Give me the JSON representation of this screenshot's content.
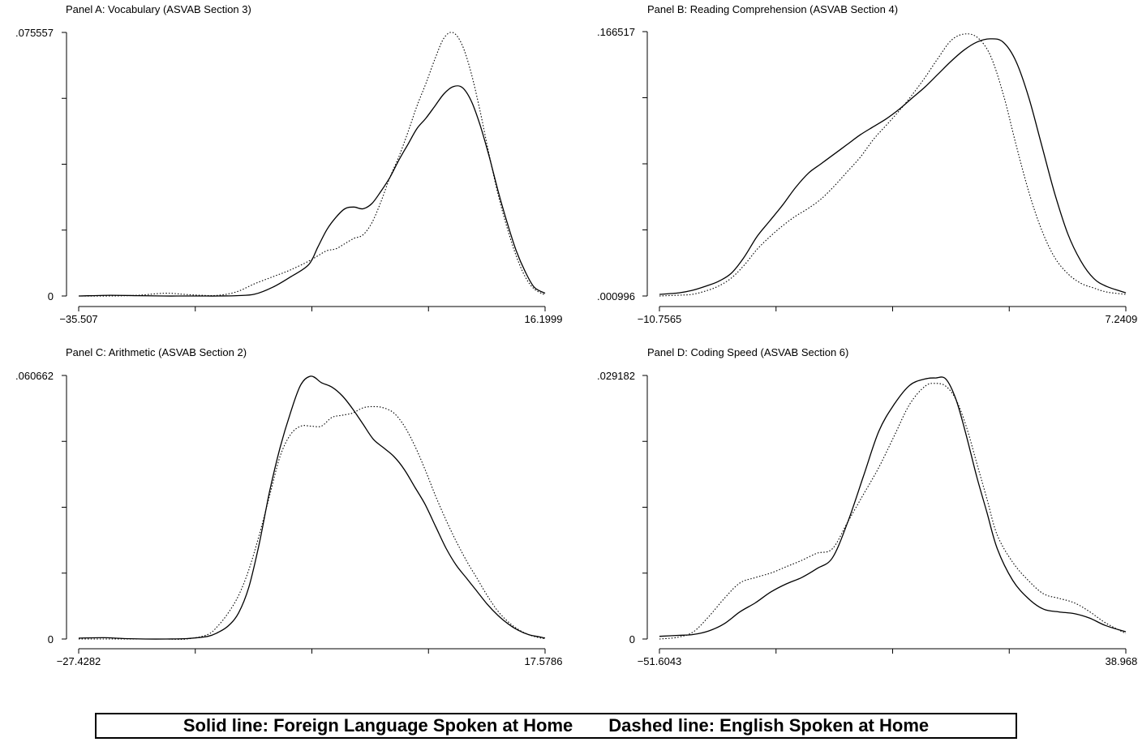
{
  "chart_data": [
    {
      "type": "line",
      "title": "Panel A: Vocabulary (ASVAB Section 3)",
      "xlim": [
        -35.507,
        16.1999
      ],
      "ylim": [
        0,
        0.075557
      ],
      "x_tick_labels": [
        "−35.507",
        "16.1999"
      ],
      "y_tick_labels": [
        "0",
        ".075557"
      ],
      "series": [
        {
          "style": "solid",
          "x": [
            -35.507,
            -32,
            -29,
            -26,
            -24,
            -22,
            -20,
            -18,
            -16,
            -14,
            -12,
            -10,
            -9,
            -8,
            -7,
            -6,
            -5,
            -4,
            -3,
            -2,
            -1,
            0,
            1,
            2,
            3,
            4,
            5,
            6,
            7,
            8,
            9,
            10,
            11,
            12,
            13,
            14,
            15,
            16.1999
          ],
          "y": [
            0,
            0.0002,
            0.0001,
            0,
            0,
            0,
            0,
            0.0001,
            0.0005,
            0.0025,
            0.0055,
            0.009,
            0.014,
            0.019,
            0.0225,
            0.025,
            0.0255,
            0.025,
            0.0265,
            0.03,
            0.034,
            0.039,
            0.0435,
            0.048,
            0.051,
            0.0545,
            0.058,
            0.06,
            0.0598,
            0.056,
            0.049,
            0.04,
            0.03,
            0.021,
            0.013,
            0.007,
            0.0025,
            0.0008
          ]
        },
        {
          "style": "dotted",
          "x": [
            -35.507,
            -32,
            -29,
            -26,
            -24,
            -22,
            -20,
            -18,
            -16,
            -14,
            -12,
            -10,
            -9,
            -8,
            -7,
            -6,
            -5,
            -4,
            -3,
            -2,
            -1,
            0,
            1,
            2,
            3,
            4,
            5,
            6,
            7,
            8,
            9,
            10,
            11,
            12,
            13,
            14,
            15,
            16.1999
          ],
          "y": [
            0,
            0,
            0.0002,
            0.0008,
            0.0005,
            0.0002,
            0.0002,
            0.0012,
            0.0035,
            0.0055,
            0.0075,
            0.01,
            0.0115,
            0.013,
            0.0135,
            0.015,
            0.0165,
            0.0175,
            0.021,
            0.027,
            0.034,
            0.04,
            0.047,
            0.0545,
            0.061,
            0.068,
            0.074,
            0.0755,
            0.072,
            0.064,
            0.053,
            0.0405,
            0.029,
            0.0195,
            0.0115,
            0.0055,
            0.002,
            0.0003
          ]
        }
      ]
    },
    {
      "type": "line",
      "title": "Panel B: Reading Comprehension (ASVAB Section 4)",
      "xlim": [
        -10.7565,
        7.24099
      ],
      "ylim": [
        0.000996,
        0.166517
      ],
      "x_tick_labels": [
        "−10.7565",
        "7.24099"
      ],
      "y_tick_labels": [
        ".000996",
        ".166517"
      ],
      "series": [
        {
          "style": "solid",
          "x": [
            -10.7565,
            -10,
            -9.5,
            -9,
            -8.5,
            -8,
            -7.5,
            -7,
            -6.5,
            -6,
            -5.5,
            -5,
            -4.5,
            -4,
            -3.5,
            -3,
            -2.5,
            -2,
            -1.5,
            -1,
            -0.5,
            0,
            0.5,
            1,
            1.5,
            2,
            2.5,
            3,
            3.5,
            4,
            4.5,
            5,
            5.5,
            6,
            6.5,
            7.24099
          ],
          "y": [
            0.002,
            0.003,
            0.0045,
            0.007,
            0.01,
            0.015,
            0.025,
            0.038,
            0.048,
            0.058,
            0.069,
            0.078,
            0.084,
            0.09,
            0.096,
            0.102,
            0.107,
            0.112,
            0.118,
            0.125,
            0.132,
            0.14,
            0.148,
            0.155,
            0.16,
            0.162,
            0.16,
            0.148,
            0.125,
            0.095,
            0.065,
            0.04,
            0.023,
            0.012,
            0.007,
            0.003
          ]
        },
        {
          "style": "dotted",
          "x": [
            -10.7565,
            -10,
            -9.5,
            -9,
            -8.5,
            -8,
            -7.5,
            -7,
            -6.5,
            -6,
            -5.5,
            -5,
            -4.5,
            -4,
            -3.5,
            -3,
            -2.5,
            -2,
            -1.5,
            -1,
            -0.5,
            0,
            0.5,
            1,
            1.5,
            2,
            2.5,
            3,
            3.5,
            4,
            4.5,
            5,
            5.5,
            6,
            6.5,
            7.24099
          ],
          "y": [
            0.001,
            0.0015,
            0.002,
            0.004,
            0.007,
            0.012,
            0.02,
            0.03,
            0.038,
            0.045,
            0.051,
            0.056,
            0.062,
            0.07,
            0.079,
            0.088,
            0.099,
            0.108,
            0.117,
            0.127,
            0.138,
            0.15,
            0.161,
            0.165,
            0.163,
            0.152,
            0.128,
            0.096,
            0.066,
            0.042,
            0.025,
            0.015,
            0.009,
            0.006,
            0.0035,
            0.002
          ]
        }
      ]
    },
    {
      "type": "line",
      "title": "Panel C: Arithmetic (ASVAB Section 2)",
      "xlim": [
        -27.4282,
        17.5786
      ],
      "ylim": [
        0,
        0.060662
      ],
      "x_tick_labels": [
        "−27.4282",
        "17.5786"
      ],
      "y_tick_labels": [
        "0",
        ".060662"
      ],
      "series": [
        {
          "style": "solid",
          "x": [
            -27.4282,
            -25,
            -23,
            -21,
            -19,
            -17,
            -15,
            -14,
            -13,
            -12,
            -11,
            -10,
            -9,
            -8,
            -7,
            -6,
            -5,
            -4,
            -3,
            -2,
            -1,
            0,
            1,
            2,
            3,
            4,
            5,
            6,
            7,
            8,
            9,
            10,
            11,
            12,
            13,
            14,
            15,
            16,
            17,
            17.5786
          ],
          "y": [
            0.0002,
            0.0003,
            0.0001,
            0,
            0,
            0.0001,
            0.0006,
            0.0015,
            0.003,
            0.006,
            0.012,
            0.022,
            0.034,
            0.044,
            0.052,
            0.0585,
            0.0605,
            0.059,
            0.058,
            0.056,
            0.053,
            0.0495,
            0.046,
            0.044,
            0.042,
            0.039,
            0.035,
            0.031,
            0.026,
            0.021,
            0.017,
            0.014,
            0.011,
            0.008,
            0.0055,
            0.0035,
            0.002,
            0.001,
            0.0005,
            0.0002
          ]
        },
        {
          "style": "dotted",
          "x": [
            -27.4282,
            -25,
            -23,
            -21,
            -19,
            -17,
            -15,
            -14,
            -13,
            -12,
            -11,
            -10,
            -9,
            -8,
            -7,
            -6,
            -5,
            -4,
            -3,
            -2,
            -1,
            0,
            1,
            2,
            3,
            4,
            5,
            6,
            7,
            8,
            9,
            10,
            11,
            12,
            13,
            14,
            15,
            16,
            17,
            17.5786
          ],
          "y": [
            0,
            0,
            0,
            0,
            0,
            0,
            0.001,
            0.003,
            0.006,
            0.01,
            0.016,
            0.024,
            0.033,
            0.042,
            0.047,
            0.049,
            0.049,
            0.049,
            0.051,
            0.0515,
            0.052,
            0.0532,
            0.0535,
            0.0532,
            0.052,
            0.049,
            0.0445,
            0.039,
            0.033,
            0.0275,
            0.0225,
            0.018,
            0.014,
            0.01,
            0.0065,
            0.004,
            0.0022,
            0.001,
            0.0003,
            0.0001
          ]
        }
      ]
    },
    {
      "type": "line",
      "title": "Panel D: Coding Speed (ASVAB Section 6)",
      "xlim": [
        -51.6043,
        38.9687
      ],
      "ylim": [
        0,
        0.029182
      ],
      "x_tick_labels": [
        "−51.6043",
        "38.9687"
      ],
      "y_tick_labels": [
        "0",
        ".029182"
      ],
      "series": [
        {
          "style": "solid",
          "x": [
            -51.6043,
            -48,
            -45,
            -42,
            -39,
            -36,
            -33,
            -30,
            -27,
            -24,
            -21,
            -18,
            -15,
            -12,
            -9,
            -6,
            -3,
            0,
            2,
            4,
            6,
            8,
            10,
            12,
            14,
            17,
            20,
            23,
            26,
            29,
            32,
            35,
            38.9687
          ],
          "y": [
            0.0003,
            0.0004,
            0.0005,
            0.0009,
            0.0017,
            0.003,
            0.004,
            0.0052,
            0.0061,
            0.0068,
            0.0078,
            0.009,
            0.013,
            0.018,
            0.023,
            0.026,
            0.0281,
            0.0288,
            0.0289,
            0.0288,
            0.0265,
            0.0225,
            0.018,
            0.014,
            0.01,
            0.0065,
            0.0045,
            0.0033,
            0.003,
            0.0028,
            0.0023,
            0.0015,
            0.0008
          ]
        },
        {
          "style": "dotted",
          "x": [
            -51.6043,
            -48,
            -45,
            -42,
            -39,
            -36,
            -33,
            -30,
            -27,
            -24,
            -21,
            -18,
            -15,
            -12,
            -9,
            -6,
            -3,
            0,
            2,
            4,
            6,
            8,
            10,
            12,
            14,
            17,
            20,
            23,
            26,
            29,
            32,
            35,
            38.9687
          ],
          "y": [
            0,
            0.0002,
            0.0008,
            0.0025,
            0.0045,
            0.0062,
            0.0068,
            0.0073,
            0.008,
            0.0087,
            0.0095,
            0.01,
            0.013,
            0.016,
            0.019,
            0.0225,
            0.026,
            0.028,
            0.0283,
            0.028,
            0.0265,
            0.0235,
            0.0195,
            0.0155,
            0.0115,
            0.0085,
            0.0065,
            0.005,
            0.0045,
            0.004,
            0.003,
            0.0018,
            0.0006
          ]
        }
      ]
    }
  ],
  "legend": {
    "solid_label": "Solid line: Foreign Language Spoken at Home",
    "dashed_label": "Dashed line:  English Spoken at Home"
  }
}
